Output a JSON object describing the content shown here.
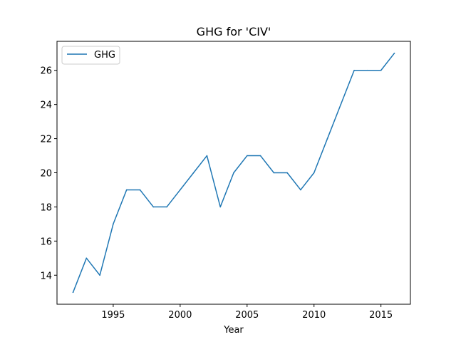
{
  "chart_data": {
    "type": "line",
    "title": "GHG for 'CIV'",
    "xlabel": "Year",
    "ylabel": "",
    "xlim": [
      1990.8,
      2017.2
    ],
    "ylim": [
      12.3,
      27.7
    ],
    "xticks": [
      1995,
      2000,
      2005,
      2010,
      2015
    ],
    "yticks": [
      14,
      16,
      18,
      20,
      22,
      24,
      26
    ],
    "grid": false,
    "legend_position": "top-left",
    "series": [
      {
        "name": "GHG",
        "color": "#1f77b4",
        "x": [
          1992,
          1993,
          1994,
          1995,
          1996,
          1997,
          1998,
          1999,
          2000,
          2001,
          2002,
          2003,
          2004,
          2005,
          2006,
          2007,
          2008,
          2009,
          2010,
          2011,
          2012,
          2013,
          2014,
          2015,
          2016
        ],
        "y": [
          13,
          15,
          14,
          17,
          19,
          19,
          18,
          18,
          19,
          20,
          21,
          18,
          20,
          21,
          21,
          20,
          20,
          19,
          20,
          22,
          24,
          26,
          26,
          26,
          27
        ]
      }
    ]
  }
}
